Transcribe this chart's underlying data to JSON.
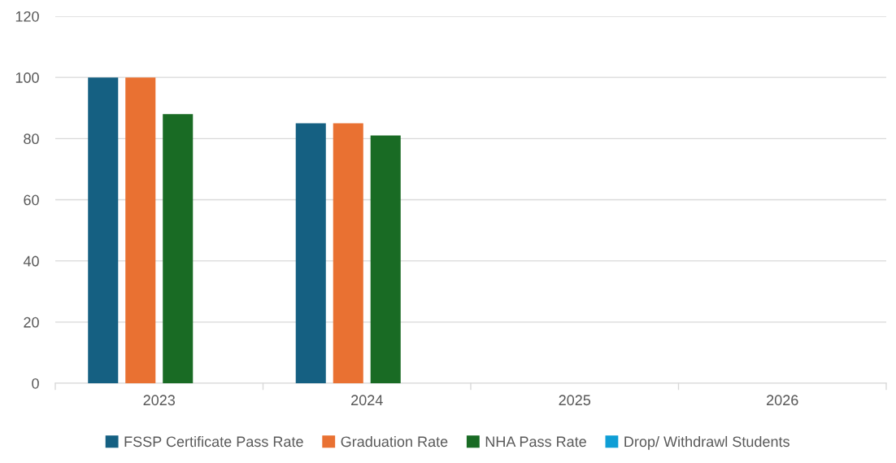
{
  "chart_data": {
    "type": "bar",
    "categories": [
      "2023",
      "2024",
      "2025",
      "2026"
    ],
    "series": [
      {
        "name": "FSSP Certificate Pass Rate",
        "color": "#156082",
        "values": [
          100,
          85,
          null,
          null
        ]
      },
      {
        "name": "Graduation Rate",
        "color": "#e97132",
        "values": [
          100,
          85,
          null,
          null
        ]
      },
      {
        "name": "NHA Pass Rate",
        "color": "#196b24",
        "values": [
          88,
          81,
          null,
          null
        ]
      },
      {
        "name": "Drop/ Withdrawl Students",
        "color": "#0f9ed5",
        "values": [
          null,
          null,
          null,
          null
        ]
      }
    ],
    "ylim": [
      0,
      120
    ],
    "yticks": [
      0,
      20,
      40,
      60,
      80,
      100,
      120
    ],
    "grid": "y",
    "legend": "bottom"
  }
}
